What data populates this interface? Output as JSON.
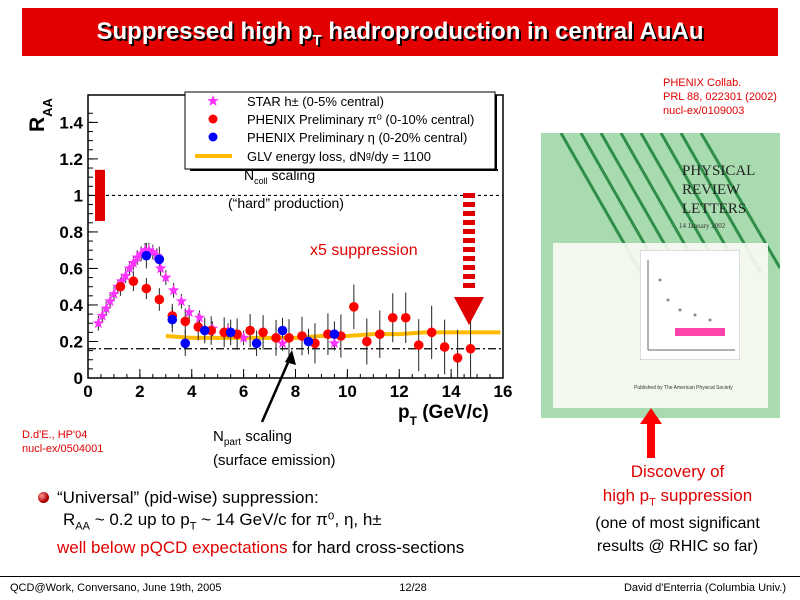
{
  "slide": {
    "title_main": "Suppressed high p",
    "title_sub": "T",
    "title_rest": " hadroproduction in central AuAu",
    "reference": [
      "PHENIX Collab.",
      "PRL 88, 022301 (2002)",
      "nucl-ex/0109003"
    ],
    "author_ref": [
      "D.d'E., HP'04",
      "nucl-ex/0504001"
    ],
    "ncoll_label_main": "N",
    "ncoll_label_sub": "coll",
    "ncoll_label_rest": " scaling",
    "hard_production": "(“hard” production)",
    "suppression_label": "x5 suppression",
    "npart_label_main": "N",
    "npart_label_sub": "part",
    "npart_label_rest": " scaling",
    "surface_emission": "(surface emission)",
    "discovery_line1": "Discovery of",
    "discovery_line2_main": "high p",
    "discovery_line2_sub": "T",
    "discovery_line2_rest": " suppression",
    "significance_line1": "(one of most significant",
    "significance_line2": "results @ RHIC so far)",
    "bullet_line1": "“Universal” (pid-wise) suppression:",
    "bullet_line2_a": "R",
    "bullet_line2_sub": "AA",
    "bullet_line2_b": " ~ 0.2 up to p",
    "bullet_line2_sub2": "T",
    "bullet_line2_c": " ~ 14 GeV/c for π⁰, η, h±",
    "bullet_line3_red": "well below pQCD expectations",
    "bullet_line3_rest": " for hard cross-sections",
    "footer_left": "QCD@Work, Conversano, June 19th, 2005",
    "footer_center": "12/28",
    "footer_right": "David d'Enterria (Columbia Univ.)"
  },
  "journal": {
    "title_lines": [
      "PHYSICAL",
      "REVIEW",
      "LETTERS"
    ],
    "date": "14 January 2002",
    "publisher": "Published by The American Physical Society"
  },
  "colors": {
    "title_bg": "#e30000",
    "star": "#ff33ff",
    "pi0": "#ff0000",
    "eta": "#0000ff",
    "glv": "#ffbb00",
    "accent_red": "#e00000"
  },
  "chart_data": {
    "type": "scatter",
    "xlabel": "p_T (GeV/c)",
    "ylabel": "R_AA",
    "xlim": [
      0,
      16
    ],
    "ylim": [
      0,
      1.55
    ],
    "x_ticks": [
      0,
      2,
      4,
      6,
      8,
      10,
      12,
      14,
      16
    ],
    "y_ticks": [
      0,
      0.2,
      0.4,
      0.6,
      0.8,
      1,
      1.2,
      1.4
    ],
    "y_tick_labels": [
      "0",
      "0.2",
      "0.4",
      "0.6",
      "0.8",
      "1",
      "1.2",
      "1.4"
    ],
    "reference_lines": [
      {
        "name": "Ncoll scaling",
        "y": 1.0
      },
      {
        "name": "Npart scaling",
        "y": 0.16
      }
    ],
    "legend": [
      "STAR h± (0-5% central)",
      "PHENIX Preliminary π⁰ (0-10% central)",
      "PHENIX Preliminary η (0-20% central)",
      "GLV energy loss, dNᵍ/dy = 1100"
    ],
    "series": [
      {
        "name": "STAR h± (0-5% central)",
        "marker": "star",
        "x": [
          0.4,
          0.55,
          0.7,
          0.85,
          1.0,
          1.15,
          1.3,
          1.45,
          1.6,
          1.75,
          1.9,
          2.05,
          2.2,
          2.35,
          2.5,
          2.65,
          2.8,
          3.0,
          3.3,
          3.6,
          3.9,
          4.3,
          4.8,
          5.4,
          6.0,
          7.5,
          9.5
        ],
        "y": [
          0.3,
          0.34,
          0.38,
          0.42,
          0.46,
          0.5,
          0.53,
          0.56,
          0.6,
          0.63,
          0.66,
          0.68,
          0.7,
          0.7,
          0.69,
          0.67,
          0.6,
          0.55,
          0.48,
          0.42,
          0.36,
          0.33,
          0.27,
          0.26,
          0.22,
          0.19,
          0.19
        ]
      },
      {
        "name": "PHENIX Preliminary π⁰ (0-10% central)",
        "marker": "circle",
        "x": [
          1.25,
          1.75,
          2.25,
          2.75,
          3.25,
          3.75,
          4.25,
          4.75,
          5.25,
          5.75,
          6.25,
          6.75,
          7.25,
          7.75,
          8.25,
          8.75,
          9.25,
          9.75,
          10.25,
          10.75,
          11.25,
          11.75,
          12.25,
          12.75,
          13.25,
          13.75,
          14.25,
          14.75
        ],
        "y": [
          0.5,
          0.53,
          0.49,
          0.43,
          0.34,
          0.31,
          0.28,
          0.26,
          0.25,
          0.24,
          0.26,
          0.25,
          0.22,
          0.22,
          0.23,
          0.19,
          0.24,
          0.23,
          0.39,
          0.2,
          0.24,
          0.33,
          0.33,
          0.18,
          0.25,
          0.17,
          0.11,
          0.16
        ]
      },
      {
        "name": "PHENIX Preliminary η (0-20% central)",
        "marker": "circle",
        "x": [
          2.25,
          2.75,
          3.25,
          3.75,
          4.5,
          5.5,
          6.5,
          7.5,
          8.5,
          9.5
        ],
        "y": [
          0.67,
          0.65,
          0.32,
          0.19,
          0.26,
          0.25,
          0.19,
          0.26,
          0.2,
          0.24
        ]
      },
      {
        "name": "GLV energy loss, dNᵍ/dy = 1100",
        "marker": "band",
        "x": [
          3,
          4,
          5,
          6,
          7,
          8,
          9,
          10,
          11,
          12,
          13,
          14,
          15.9
        ],
        "y": [
          0.23,
          0.22,
          0.22,
          0.22,
          0.22,
          0.22,
          0.23,
          0.23,
          0.24,
          0.24,
          0.25,
          0.25,
          0.25
        ]
      }
    ]
  }
}
